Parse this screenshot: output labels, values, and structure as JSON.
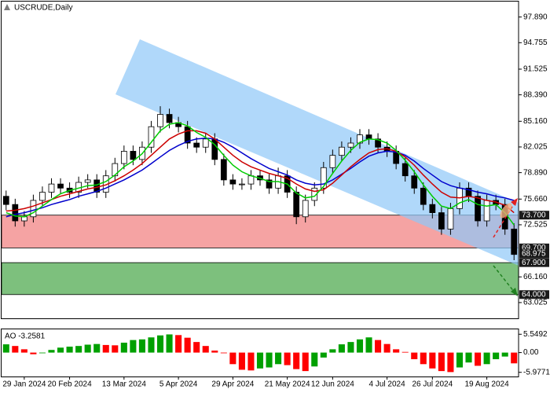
{
  "chart_data": {
    "type": "candlestick",
    "title": "USCRUDE,Daily",
    "categories": [
      null,
      null,
      "29 Jan 2024",
      null,
      null,
      null,
      null,
      "20 Feb 2024",
      null,
      null,
      null,
      null,
      null,
      "13 Mar 2024",
      null,
      null,
      null,
      null,
      null,
      "5 Apr 2024",
      null,
      null,
      null,
      null,
      null,
      "29 Apr 2024",
      null,
      null,
      null,
      null,
      null,
      "21 May 2024",
      null,
      null,
      null,
      null,
      "12 Jun 2024",
      null,
      null,
      null,
      null,
      null,
      "4 Jul 2024",
      null,
      null,
      null,
      null,
      "26 Jul 2024",
      null,
      null,
      null,
      null,
      null,
      "19 Aug 2024",
      null,
      null,
      null
    ],
    "open": [
      76.0,
      75.0,
      73.0,
      73.5,
      75.5,
      76.5,
      77.5,
      77.0,
      76.5,
      77.7,
      78.0,
      76.5,
      78.5,
      80.0,
      81.5,
      80.5,
      82.0,
      84.5,
      86.0,
      85.0,
      84.5,
      82.5,
      82.0,
      83.0,
      80.5,
      78.0,
      77.5,
      77.5,
      78.5,
      78.0,
      77.0,
      78.5,
      76.5,
      73.5,
      75.5,
      77.0,
      79.5,
      81.0,
      82.0,
      82.5,
      83.5,
      83.0,
      82.0,
      81.5,
      80.0,
      78.5,
      77.0,
      75.0,
      74.0,
      72.0,
      74.5,
      77.0,
      76.0,
      73.0,
      75.5,
      75.0,
      72.0
    ],
    "high": [
      76.7,
      75.7,
      74.2,
      76.2,
      77.2,
      78.2,
      78.2,
      77.7,
      78.4,
      78.7,
      78.7,
      79.2,
      80.7,
      82.2,
      82.2,
      82.7,
      85.2,
      87.0,
      86.7,
      85.7,
      85.2,
      83.2,
      83.7,
      83.7,
      81.2,
      78.7,
      78.2,
      79.2,
      79.2,
      78.7,
      79.5,
      79.2,
      77.2,
      76.2,
      77.7,
      80.2,
      81.7,
      82.7,
      83.2,
      84.2,
      84.2,
      83.7,
      82.7,
      82.2,
      80.7,
      79.2,
      77.7,
      75.7,
      74.7,
      75.2,
      77.7,
      77.7,
      76.7,
      76.2,
      76.2,
      75.7,
      72.7
    ],
    "low": [
      74.3,
      72.3,
      72.3,
      72.8,
      74.8,
      75.8,
      76.3,
      75.8,
      75.8,
      77.0,
      75.8,
      75.8,
      77.8,
      79.3,
      79.8,
      79.8,
      81.3,
      83.8,
      84.3,
      83.8,
      81.8,
      81.3,
      81.3,
      79.8,
      77.3,
      76.8,
      76.8,
      76.8,
      77.3,
      76.3,
      76.3,
      75.8,
      72.6,
      72.8,
      74.8,
      76.3,
      78.8,
      80.3,
      81.3,
      81.8,
      82.3,
      81.3,
      80.8,
      79.3,
      77.8,
      76.3,
      74.3,
      73.3,
      71.3,
      71.3,
      73.8,
      75.3,
      72.3,
      72.3,
      74.3,
      71.3,
      68.2
    ],
    "close": [
      75.0,
      73.0,
      73.5,
      75.5,
      76.5,
      77.5,
      77.0,
      76.5,
      77.7,
      78.0,
      76.5,
      78.5,
      80.0,
      81.5,
      80.5,
      82.0,
      84.5,
      86.0,
      85.0,
      84.5,
      82.5,
      82.0,
      83.0,
      80.5,
      78.0,
      77.5,
      77.5,
      78.5,
      78.0,
      77.0,
      78.5,
      76.5,
      73.5,
      75.5,
      77.0,
      79.5,
      81.0,
      82.0,
      82.5,
      83.5,
      83.0,
      82.0,
      81.5,
      80.0,
      78.5,
      77.0,
      75.0,
      74.0,
      72.0,
      74.5,
      77.0,
      76.0,
      73.0,
      75.5,
      75.0,
      72.0,
      68.9
    ],
    "moving_averages": [
      {
        "color": "#0000cc",
        "values": [
          73.5,
          73.8,
          74.0,
          74.3,
          74.6,
          75.0,
          75.3,
          75.6,
          76.0,
          76.3,
          76.6,
          77.0,
          77.5,
          78.0,
          78.6,
          79.2,
          80.0,
          80.8,
          81.6,
          82.2,
          82.7,
          83.0,
          83.1,
          83.0,
          82.6,
          82.0,
          81.3,
          80.6,
          80.0,
          79.4,
          79.0,
          78.6,
          78.0,
          77.6,
          77.4,
          77.5,
          78.0,
          78.7,
          79.4,
          80.2,
          80.9,
          81.3,
          81.5,
          81.4,
          81.0,
          80.3,
          79.4,
          78.6,
          77.8,
          77.3,
          77.0,
          76.8,
          76.5,
          76.3,
          76.0,
          75.8,
          75.5
        ]
      },
      {
        "color": "#cc0000",
        "values": [
          74.2,
          74.3,
          74.5,
          74.8,
          75.2,
          75.6,
          76.0,
          76.3,
          76.6,
          76.9,
          77.1,
          77.4,
          77.9,
          78.5,
          79.2,
          80.0,
          81.0,
          82.0,
          83.0,
          83.6,
          84.0,
          84.0,
          83.7,
          83.0,
          82.0,
          81.0,
          80.2,
          79.6,
          79.2,
          78.8,
          78.5,
          78.2,
          77.5,
          76.9,
          76.6,
          76.8,
          77.6,
          78.6,
          79.6,
          80.5,
          81.3,
          81.7,
          81.8,
          81.5,
          80.8,
          79.8,
          78.6,
          77.5,
          76.5,
          75.9,
          75.8,
          76.0,
          75.8,
          75.5,
          75.3,
          74.9,
          74.0
        ]
      },
      {
        "color": "#00cc00",
        "values": [
          74.0,
          73.6,
          73.5,
          74.0,
          74.8,
          75.6,
          76.3,
          76.7,
          77.0,
          77.3,
          77.4,
          77.8,
          78.6,
          79.6,
          80.3,
          81.2,
          82.6,
          84.0,
          84.8,
          85.0,
          84.6,
          83.8,
          83.2,
          82.3,
          81.0,
          79.8,
          79.0,
          78.5,
          78.2,
          77.8,
          77.8,
          77.5,
          76.4,
          75.8,
          76.0,
          77.2,
          78.8,
          80.3,
          81.6,
          82.6,
          83.0,
          82.9,
          82.5,
          81.6,
          80.4,
          79.0,
          77.4,
          76.0,
          74.8,
          74.5,
          75.2,
          75.6,
          75.0,
          74.8,
          75.0,
          74.0,
          72.5
        ]
      }
    ],
    "ylim": [
      61.1,
      99.2
    ],
    "yticks": [
      {
        "value": 97.89,
        "label": "97.890"
      },
      {
        "value": 94.755,
        "label": "94.755"
      },
      {
        "value": 91.525,
        "label": "91.525"
      },
      {
        "value": 88.39,
        "label": "88.390"
      },
      {
        "value": 85.16,
        "label": "85.160"
      },
      {
        "value": 82.025,
        "label": "82.025"
      },
      {
        "value": 78.89,
        "label": "78.890"
      },
      {
        "value": 75.66,
        "label": "75.660"
      },
      {
        "value": 72.525,
        "label": "72.525"
      },
      {
        "value": 66.16,
        "label": "66.160"
      },
      {
        "value": 63.025,
        "label": "63.025"
      }
    ],
    "price_labels": [
      {
        "value": 73.7,
        "label": "73.700"
      },
      {
        "value": 69.7,
        "label": "69.700"
      },
      {
        "value": 68.975,
        "label": "68.975"
      },
      {
        "value": 67.9,
        "label": "67.900"
      },
      {
        "value": 64.0,
        "label": "64.000"
      }
    ],
    "zones": [
      {
        "low": 69.7,
        "high": 73.7,
        "color": "#f5a3a3"
      },
      {
        "low": 64.0,
        "high": 67.9,
        "color": "#7dc07d"
      }
    ],
    "ao": {
      "title": "AO -3.2581",
      "values": [
        2.5,
        2.0,
        1.0,
        -0.5,
        -0.2,
        0.8,
        1.5,
        1.8,
        2.0,
        2.4,
        2.6,
        2.3,
        2.2,
        3.0,
        3.8,
        4.0,
        4.6,
        5.2,
        5.5,
        5.3,
        4.5,
        3.2,
        2.0,
        0.6,
        -0.2,
        -3.5,
        -5.2,
        -5.4,
        -4.8,
        -4.5,
        -3.5,
        -3.8,
        -5.0,
        -5.6,
        -4.2,
        -1.5,
        1.0,
        2.5,
        3.2,
        4.0,
        4.6,
        3.8,
        2.6,
        1.0,
        0.2,
        -2.0,
        -3.5,
        -4.8,
        -5.6,
        -5.9,
        -4.5,
        -3.0,
        -4.0,
        -3.5,
        -2.0,
        -1.2,
        -3.2581
      ],
      "ylim": [
        -7.0,
        6.8
      ],
      "yticks": [
        5.5492,
        {
          "value": 0,
          "label": "0.00"
        },
        -5.9771
      ],
      "up_color": "#00a000",
      "down_color": "#ff0000"
    }
  }
}
